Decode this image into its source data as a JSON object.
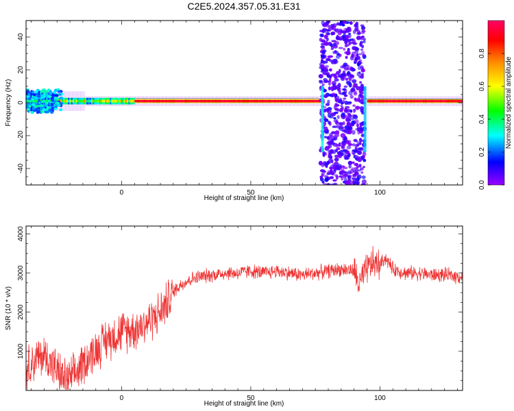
{
  "title": "C2E5.2024.357.05.31.E31",
  "chart_data": [
    {
      "type": "heatmap",
      "xlabel": "Height of straight line (km)",
      "ylabel": "Frequency (Hz)",
      "xlim": [
        -37,
        132
      ],
      "ylim": [
        -50,
        50
      ],
      "x_ticks": [
        0,
        50,
        100
      ],
      "y_ticks": [
        -40,
        -20,
        0,
        20,
        40
      ],
      "colorbar": {
        "label": "Normalized spectral amplitude",
        "range": [
          0,
          1
        ],
        "ticks": [
          "0.0",
          "0.2",
          "0.4",
          "0.6",
          "0.8"
        ],
        "colormap": [
          "#9900ff",
          "#0000ff",
          "#00ffff",
          "#00ff00",
          "#ffff00",
          "#ff8800",
          "#ff0000",
          "#ff0066"
        ]
      },
      "features": {
        "ridge_frequency_hz": 1,
        "noise_band_x": [
          77,
          94
        ]
      }
    },
    {
      "type": "line",
      "xlabel": "Height of straight line (km)",
      "ylabel": "SNR (10 * v/v)",
      "xlim": [
        -37,
        132
      ],
      "ylim": [
        0,
        4200
      ],
      "x_ticks": [
        0,
        50,
        100
      ],
      "y_ticks": [
        1000,
        2000,
        3000,
        4000
      ],
      "color": "#ee3333",
      "series": [
        {
          "x": [
            -37,
            -33,
            -30,
            -27,
            -24,
            -21,
            -18,
            -15,
            -12,
            -9,
            -6,
            -3,
            0,
            3,
            6,
            9,
            12,
            15,
            18,
            21,
            24,
            27,
            30,
            35,
            40,
            45,
            50,
            55,
            60,
            65,
            70,
            75,
            80,
            85,
            90,
            92,
            95,
            97,
            100,
            102,
            105,
            110,
            115,
            120,
            125,
            132
          ],
          "y": [
            600,
            800,
            900,
            700,
            400,
            250,
            400,
            700,
            900,
            1100,
            1300,
            1400,
            1500,
            1550,
            1600,
            1700,
            1850,
            2000,
            2300,
            2600,
            2750,
            2850,
            2900,
            2950,
            3000,
            3000,
            3050,
            3000,
            3050,
            3000,
            2950,
            3000,
            3050,
            3100,
            3050,
            2700,
            3100,
            3250,
            3200,
            3400,
            3100,
            3000,
            3000,
            2950,
            2950,
            2900
          ]
        }
      ]
    }
  ]
}
